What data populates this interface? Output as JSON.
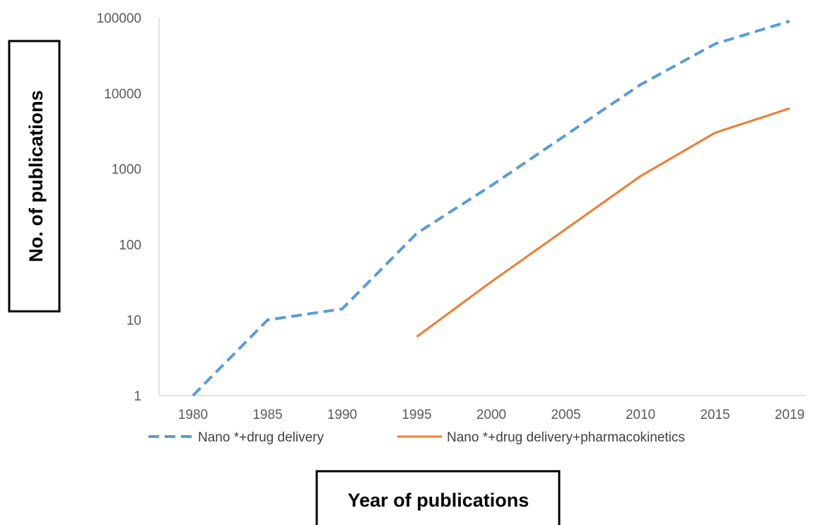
{
  "chart_data": {
    "type": "line",
    "xlabel": "Year of publications",
    "ylabel": "No. of publications",
    "y_scale": "log",
    "ylim": [
      1,
      100000
    ],
    "grid": false,
    "legend_position": "bottom",
    "x": [
      "1980",
      "1985",
      "1990",
      "1995",
      "2000",
      "2005",
      "2010",
      "2015",
      "2019"
    ],
    "y_ticks": [
      "1",
      "10",
      "100",
      "1000",
      "10000",
      "100000"
    ],
    "series": [
      {
        "name": "Nano *+drug delivery",
        "color": "#5B9BD5",
        "line_style": "dashed",
        "values": [
          1,
          10,
          14,
          140,
          600,
          2800,
          13000,
          45000,
          90000
        ]
      },
      {
        "name": "Nano *+drug delivery+pharmacokinetics",
        "color": "#ED7D31",
        "line_style": "solid",
        "values": [
          null,
          null,
          null,
          6,
          32,
          160,
          800,
          3000,
          6300
        ]
      }
    ]
  }
}
